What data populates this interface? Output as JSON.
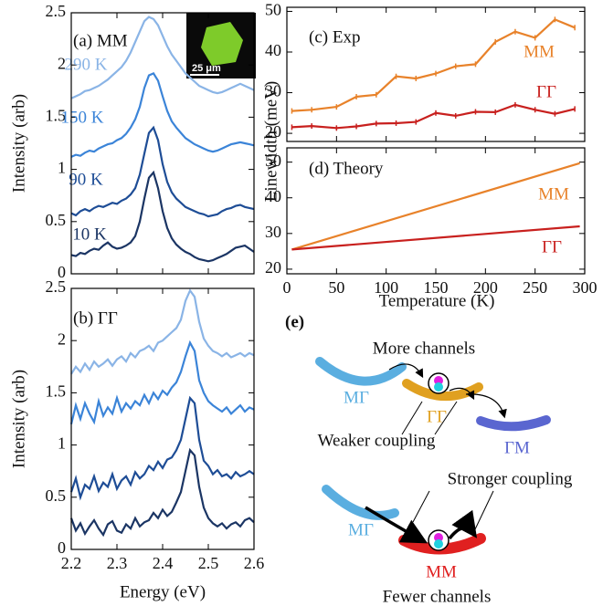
{
  "chart_data": [
    {
      "type": "line",
      "title": "(a) MM",
      "y_label": "Intensity (arb)",
      "inset_label": "25 μm",
      "x": [
        2.2,
        2.21,
        2.22,
        2.23,
        2.24,
        2.25,
        2.26,
        2.27,
        2.28,
        2.29,
        2.3,
        2.31,
        2.32,
        2.33,
        2.34,
        2.35,
        2.36,
        2.37,
        2.38,
        2.39,
        2.4,
        2.41,
        2.42,
        2.43,
        2.44,
        2.45,
        2.46,
        2.47,
        2.48,
        2.49,
        2.5,
        2.51,
        2.52,
        2.53,
        2.54,
        2.55,
        2.56,
        2.57,
        2.58,
        2.59,
        2.6
      ],
      "xlim": [
        2.2,
        2.6
      ],
      "xticks": [
        2.2,
        2.3,
        2.4,
        2.5,
        2.6
      ],
      "ylim": [
        0,
        2.5
      ],
      "yticks": [
        0,
        0.5,
        1,
        1.5,
        2,
        2.5
      ],
      "series": [
        {
          "name": "10 K",
          "color": "#1b3564",
          "values": [
            0.18,
            0.17,
            0.2,
            0.19,
            0.22,
            0.24,
            0.23,
            0.27,
            0.3,
            0.26,
            0.24,
            0.25,
            0.27,
            0.3,
            0.36,
            0.5,
            0.72,
            0.92,
            0.97,
            0.82,
            0.6,
            0.44,
            0.34,
            0.28,
            0.24,
            0.21,
            0.19,
            0.16,
            0.14,
            0.13,
            0.12,
            0.13,
            0.15,
            0.17,
            0.19,
            0.22,
            0.25,
            0.26,
            0.27,
            0.24,
            0.21
          ]
        },
        {
          "name": "90 K",
          "color": "#1e4d96",
          "values": [
            0.58,
            0.56,
            0.6,
            0.62,
            0.6,
            0.63,
            0.65,
            0.64,
            0.66,
            0.68,
            0.67,
            0.7,
            0.72,
            0.76,
            0.82,
            0.95,
            1.15,
            1.35,
            1.4,
            1.28,
            1.05,
            0.88,
            0.78,
            0.72,
            0.68,
            0.64,
            0.62,
            0.6,
            0.58,
            0.57,
            0.55,
            0.56,
            0.57,
            0.6,
            0.62,
            0.63,
            0.65,
            0.66,
            0.64,
            0.63,
            0.62
          ]
        },
        {
          "name": "150 K",
          "color": "#3b84d8",
          "values": [
            1.12,
            1.14,
            1.13,
            1.16,
            1.18,
            1.17,
            1.2,
            1.22,
            1.24,
            1.25,
            1.28,
            1.3,
            1.34,
            1.4,
            1.48,
            1.6,
            1.78,
            1.9,
            1.92,
            1.85,
            1.7,
            1.56,
            1.46,
            1.4,
            1.35,
            1.3,
            1.27,
            1.24,
            1.22,
            1.2,
            1.18,
            1.17,
            1.18,
            1.2,
            1.22,
            1.24,
            1.25,
            1.26,
            1.25,
            1.24,
            1.23
          ]
        },
        {
          "name": "290 K",
          "color": "#8ab4e6",
          "values": [
            1.68,
            1.7,
            1.72,
            1.75,
            1.76,
            1.78,
            1.8,
            1.83,
            1.86,
            1.9,
            1.94,
            1.98,
            2.04,
            2.12,
            2.22,
            2.32,
            2.42,
            2.46,
            2.44,
            2.38,
            2.28,
            2.18,
            2.1,
            2.04,
            1.98,
            1.92,
            1.88,
            1.84,
            1.8,
            1.78,
            1.76,
            1.74,
            1.73,
            1.74,
            1.76,
            1.78,
            1.8,
            1.82,
            1.8,
            1.78,
            1.76
          ]
        }
      ]
    },
    {
      "type": "line",
      "title": "(b) ΓΓ",
      "y_label": "Intensity (arb)",
      "x_label": "Energy (eV)",
      "x": [
        2.2,
        2.21,
        2.22,
        2.23,
        2.24,
        2.25,
        2.26,
        2.27,
        2.28,
        2.29,
        2.3,
        2.31,
        2.32,
        2.33,
        2.34,
        2.35,
        2.36,
        2.37,
        2.38,
        2.39,
        2.4,
        2.41,
        2.42,
        2.43,
        2.44,
        2.45,
        2.46,
        2.47,
        2.48,
        2.49,
        2.5,
        2.51,
        2.52,
        2.53,
        2.54,
        2.55,
        2.56,
        2.57,
        2.58,
        2.59,
        2.6
      ],
      "xlim": [
        2.2,
        2.6
      ],
      "xticks": [
        2.2,
        2.3,
        2.4,
        2.5,
        2.6
      ],
      "ylim": [
        0,
        2.5
      ],
      "yticks": [
        0,
        0.5,
        1,
        1.5,
        2,
        2.5
      ],
      "series": [
        {
          "color": "#1b3564",
          "values": [
            0.3,
            0.18,
            0.25,
            0.15,
            0.22,
            0.28,
            0.2,
            0.14,
            0.24,
            0.27,
            0.18,
            0.16,
            0.24,
            0.2,
            0.3,
            0.22,
            0.26,
            0.28,
            0.35,
            0.3,
            0.38,
            0.32,
            0.36,
            0.45,
            0.55,
            0.75,
            0.95,
            0.9,
            0.6,
            0.4,
            0.3,
            0.25,
            0.22,
            0.25,
            0.2,
            0.24,
            0.26,
            0.22,
            0.28,
            0.3,
            0.26
          ]
        },
        {
          "color": "#1e4d96",
          "values": [
            0.55,
            0.68,
            0.5,
            0.62,
            0.58,
            0.7,
            0.56,
            0.64,
            0.6,
            0.72,
            0.58,
            0.66,
            0.7,
            0.62,
            0.74,
            0.68,
            0.72,
            0.8,
            0.76,
            0.84,
            0.78,
            0.86,
            0.88,
            0.95,
            1.05,
            1.25,
            1.45,
            1.4,
            1.05,
            0.85,
            0.8,
            0.72,
            0.76,
            0.7,
            0.72,
            0.68,
            0.74,
            0.7,
            0.72,
            0.75,
            0.72
          ]
        },
        {
          "color": "#3b84d8",
          "values": [
            1.2,
            1.38,
            1.25,
            1.4,
            1.3,
            1.22,
            1.42,
            1.28,
            1.36,
            1.3,
            1.45,
            1.32,
            1.4,
            1.35,
            1.42,
            1.38,
            1.48,
            1.4,
            1.5,
            1.44,
            1.52,
            1.48,
            1.55,
            1.6,
            1.7,
            1.85,
            1.98,
            1.9,
            1.62,
            1.5,
            1.42,
            1.38,
            1.35,
            1.32,
            1.36,
            1.3,
            1.34,
            1.38,
            1.32,
            1.36,
            1.34
          ]
        },
        {
          "color": "#8ab4e6",
          "values": [
            1.68,
            1.75,
            1.7,
            1.78,
            1.72,
            1.8,
            1.75,
            1.78,
            1.82,
            1.76,
            1.82,
            1.85,
            1.8,
            1.88,
            1.84,
            1.9,
            1.92,
            1.95,
            1.9,
            1.98,
            2.0,
            2.04,
            2.08,
            2.12,
            2.2,
            2.38,
            2.48,
            2.42,
            2.18,
            2.02,
            1.95,
            1.9,
            1.88,
            1.85,
            1.88,
            1.84,
            1.86,
            1.88,
            1.85,
            1.88,
            1.86
          ]
        }
      ]
    },
    {
      "type": "line",
      "title": "(c) Exp",
      "y_label": "Linewidth (meV)",
      "x": [
        5,
        25,
        50,
        70,
        90,
        110,
        130,
        150,
        170,
        190,
        210,
        230,
        250,
        270,
        290
      ],
      "xlim": [
        0,
        300
      ],
      "xticks": [
        0,
        50,
        100,
        150,
        200,
        250,
        300
      ],
      "ylim": [
        18,
        51
      ],
      "yticks": [
        20,
        30,
        40,
        50
      ],
      "series": [
        {
          "name": "MM",
          "color": "#e8822a",
          "values": [
            25.5,
            25.8,
            26.5,
            29,
            29.5,
            34,
            33.5,
            34.7,
            36.5,
            37,
            42.5,
            45,
            43.5,
            48,
            46
          ]
        },
        {
          "name": "ΓΓ",
          "color": "#c8201e",
          "values": [
            21.5,
            21.8,
            21.3,
            21.7,
            22.4,
            22.5,
            22.8,
            25,
            24.3,
            25.3,
            25.2,
            27,
            25.8,
            24.8,
            26
          ]
        }
      ]
    },
    {
      "type": "line",
      "title": "(d) Theory",
      "x_label": "Temperature (K)",
      "x": [
        5,
        295
      ],
      "xlim": [
        0,
        300
      ],
      "xticks": [
        0,
        50,
        100,
        150,
        200,
        250,
        300
      ],
      "ylim": [
        18.7,
        54
      ],
      "yticks": [
        20,
        30,
        40,
        50
      ],
      "series": [
        {
          "name": "MM",
          "color": "#e8822a",
          "values": [
            25.5,
            49.7
          ]
        },
        {
          "name": "ΓΓ",
          "color": "#c8201e",
          "values": [
            25.5,
            32
          ]
        }
      ]
    }
  ],
  "diagram": {
    "label": "(e)",
    "top_title": "More channels",
    "top_left": "MΓ",
    "top_middle": "ΓΓ",
    "top_right": "ΓM",
    "weaker": "Weaker coupling",
    "stronger": "Stronger coupling",
    "bottom_left": "MΓ",
    "bottom_middle": "MM",
    "bottom_title": "Fewer channels"
  }
}
